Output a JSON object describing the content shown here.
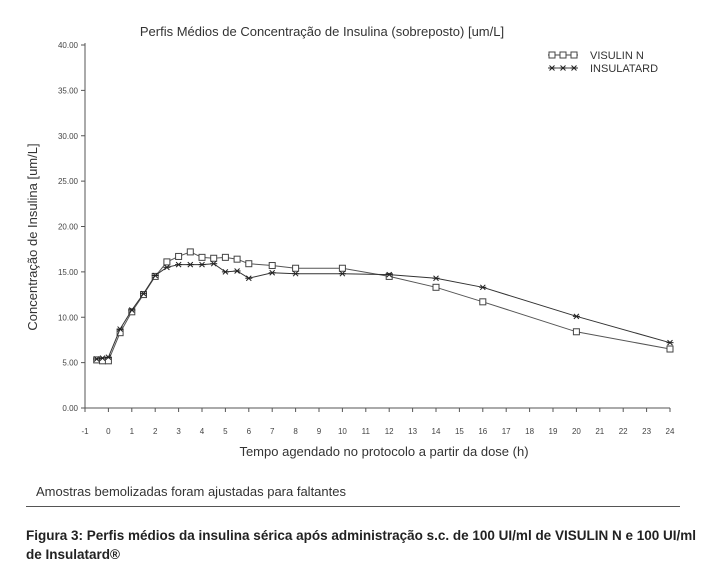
{
  "chart_data": {
    "type": "line",
    "title": "Perfis Médios de Concentração de Insulina (sobreposto) [um/L]",
    "xlabel": "Tempo agendado no protocolo a partir da dose (h)",
    "ylabel": "Concentração de Insulina [um/L]",
    "xlim": [
      -1,
      24
    ],
    "ylim": [
      0,
      40
    ],
    "x_ticks": [
      -1,
      0,
      1,
      2,
      3,
      4,
      5,
      6,
      7,
      8,
      9,
      10,
      11,
      12,
      13,
      14,
      15,
      16,
      17,
      18,
      19,
      20,
      21,
      22,
      23,
      24
    ],
    "y_ticks": [
      "0.00",
      "5.00",
      "10.00",
      "15.00",
      "20.00",
      "25.00",
      "30.00",
      "35.00",
      "40.00"
    ],
    "legend_position": "top-right",
    "series": [
      {
        "name": "VISULIN N",
        "marker": "square",
        "x": [
          -0.5,
          -0.25,
          0,
          0.5,
          1,
          1.5,
          2,
          2.5,
          3,
          3.5,
          4,
          4.5,
          5,
          5.5,
          6,
          7,
          8,
          10,
          12,
          14,
          16,
          20,
          24
        ],
        "y": [
          5.3,
          5.2,
          5.2,
          8.3,
          10.6,
          12.5,
          14.5,
          16.1,
          16.7,
          17.2,
          16.6,
          16.5,
          16.6,
          16.4,
          15.9,
          15.7,
          15.4,
          15.4,
          14.5,
          13.3,
          11.7,
          8.4,
          6.5
        ]
      },
      {
        "name": "INSULATARD",
        "marker": "star",
        "x": [
          -0.5,
          -0.25,
          0,
          0.5,
          1,
          1.5,
          2,
          2.5,
          3,
          3.5,
          4,
          4.5,
          5,
          5.5,
          6,
          7,
          8,
          10,
          12,
          14,
          16,
          20,
          24
        ],
        "y": [
          5.4,
          5.5,
          5.6,
          8.7,
          10.8,
          12.6,
          14.6,
          15.5,
          15.8,
          15.8,
          15.8,
          15.9,
          15.0,
          15.1,
          14.3,
          14.9,
          14.8,
          14.8,
          14.7,
          14.3,
          13.3,
          10.1,
          7.2
        ]
      }
    ]
  },
  "note": "Amostras bemolizadas foram ajustadas para faltantes",
  "caption": "Figura 3: Perfis médios da insulina sérica após administração s.c. de 100 UI/ml de VISULIN N e 100 UI/ml de Insulatard®"
}
